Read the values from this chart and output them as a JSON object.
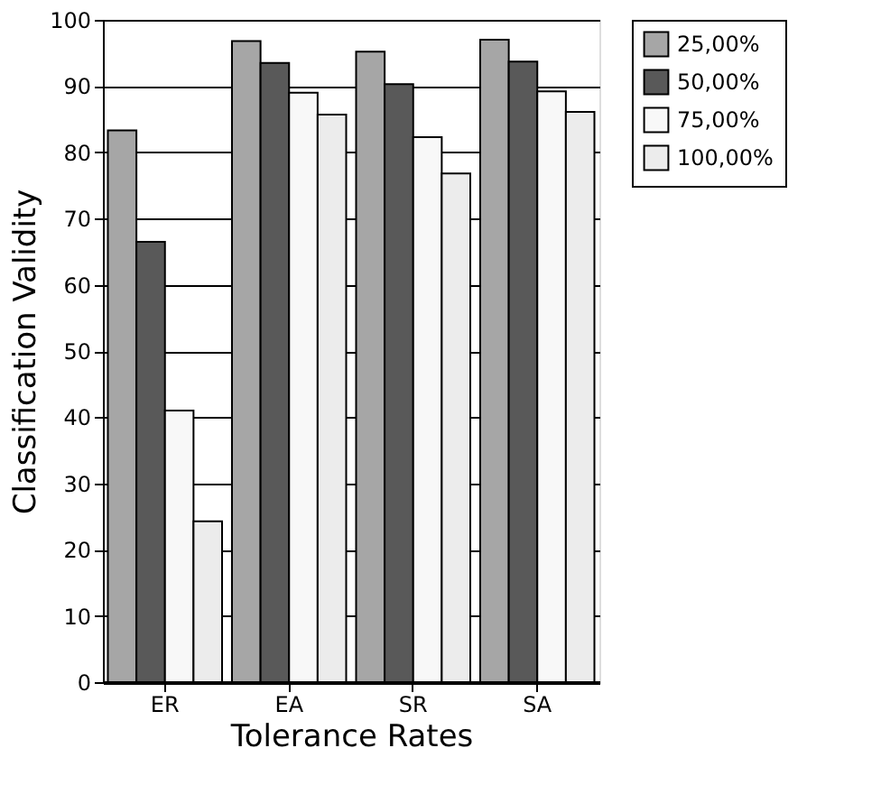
{
  "chart_data": {
    "type": "bar",
    "xlabel": "Tolerance Rates",
    "ylabel": "Classification Validity",
    "categories": [
      "ER",
      "EA",
      "SR",
      "SA"
    ],
    "series": [
      {
        "name": "25,00%",
        "color": "#a6a6a6",
        "values": [
          83.3,
          96.8,
          95.2,
          97.0
        ]
      },
      {
        "name": "50,00%",
        "color": "#595959",
        "values": [
          66.5,
          93.5,
          90.3,
          93.7
        ]
      },
      {
        "name": "75,00%",
        "color": "#f8f8f8",
        "values": [
          41.0,
          89.0,
          82.3,
          89.2
        ]
      },
      {
        "name": "100,00%",
        "color": "#ececec",
        "values": [
          24.3,
          85.7,
          76.8,
          86.1
        ]
      }
    ],
    "ylim": [
      0,
      100
    ],
    "yticks": [
      0,
      10,
      20,
      30,
      40,
      50,
      60,
      70,
      80,
      90,
      100
    ],
    "grid": "y",
    "legend": "right"
  }
}
